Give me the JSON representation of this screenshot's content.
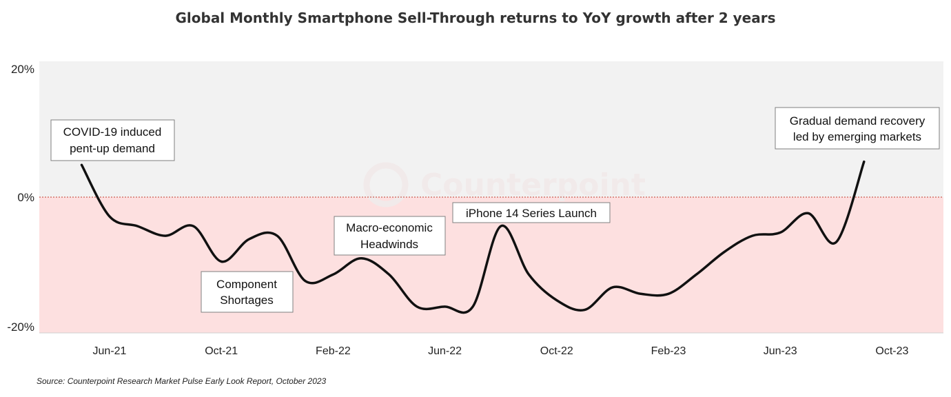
{
  "chart_data": {
    "type": "line",
    "title": "Global Monthly Smartphone Sell-Through returns to YoY growth after 2 years",
    "ylim": [
      -20,
      20
    ],
    "yticks": [
      "20%",
      "0%",
      "-20%"
    ],
    "xticks": [
      "Jun-21",
      "Oct-21",
      "Feb-22",
      "Jun-22",
      "Oct-22",
      "Feb-23",
      "Jun-23",
      "Oct-23"
    ],
    "x_range": [
      "Mar-21",
      "Nov-23"
    ],
    "reference_line": 0,
    "grid": false,
    "colors": {
      "line": "#111111",
      "positive_band": "#f2f2f2",
      "negative_band": "#fde0e0",
      "zero_line": "#c0392b",
      "annotation_border": "#7f7f7f"
    },
    "series": [
      {
        "x": [
          "May-21",
          "Jun-21",
          "Jul-21",
          "Aug-21",
          "Sep-21",
          "Oct-21",
          "Nov-21",
          "Dec-21",
          "Jan-22",
          "Feb-22",
          "Mar-22",
          "Apr-22",
          "May-22",
          "Jun-22",
          "Jul-22",
          "Aug-22",
          "Sep-22",
          "Oct-22",
          "Nov-22",
          "Dec-22",
          "Jan-23",
          "Feb-23",
          "Mar-23",
          "Apr-23",
          "May-23",
          "Jun-23",
          "Jul-23",
          "Aug-23",
          "Sep-23"
        ],
        "y": [
          5,
          -3,
          -4.5,
          -6,
          -4.5,
          -10,
          -6.5,
          -6,
          -13,
          -12,
          -9.5,
          -12,
          -17,
          -17,
          -17,
          -4.5,
          -12,
          -16,
          -17.5,
          -14,
          -15,
          -15,
          -12,
          -8.5,
          -6,
          -5.5,
          -2.5,
          -7,
          5.5
        ]
      }
    ],
    "annotations": [
      {
        "lines": [
          "COVID-19 induced",
          "pent-up demand"
        ]
      },
      {
        "lines": [
          "Component",
          "Shortages"
        ]
      },
      {
        "lines": [
          "Macro-economic",
          "Headwinds"
        ]
      },
      {
        "lines": [
          "iPhone 14 Series Launch"
        ]
      },
      {
        "lines": [
          "Gradual demand recovery",
          "led by emerging markets"
        ]
      }
    ],
    "watermark": "Counterpoint",
    "source": "Source: Counterpoint Research Market Pulse Early Look Report, October 2023"
  }
}
